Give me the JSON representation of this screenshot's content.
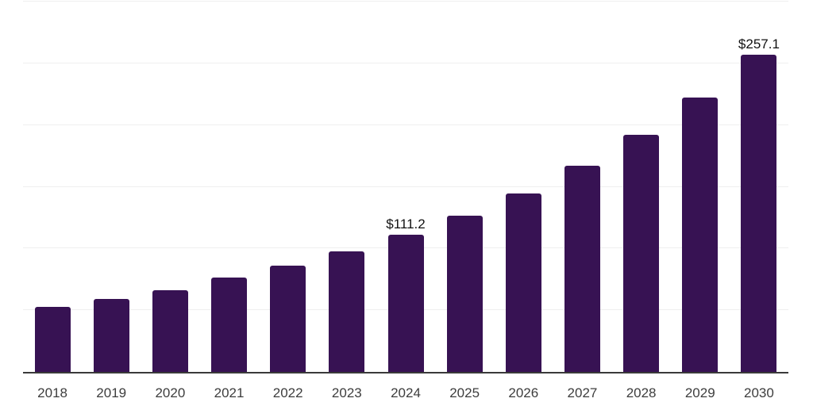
{
  "chart_data": {
    "type": "bar",
    "title": "",
    "xlabel": "",
    "ylabel": "",
    "categories": [
      "2018",
      "2019",
      "2020",
      "2021",
      "2022",
      "2023",
      "2024",
      "2025",
      "2026",
      "2027",
      "2028",
      "2029",
      "2030"
    ],
    "values": [
      52.4,
      59.2,
      65.9,
      76.6,
      86.2,
      97.7,
      111.2,
      126.9,
      144.8,
      166.8,
      191.9,
      222.2,
      257.1
    ],
    "bar_labels": [
      "",
      "",
      "",
      "",
      "",
      "",
      "$111.2",
      "",
      "",
      "",
      "",
      "",
      "$257.1"
    ],
    "ylim": [
      0,
      300
    ],
    "gridline_values": [
      50,
      100,
      150,
      200,
      250,
      300
    ],
    "grid": true,
    "legend": "none",
    "colors": {
      "bar": "#371253",
      "grid": "#efefef",
      "axis": "#3a3a3a",
      "tick_text": "#3d3d3d",
      "data_label_text": "#111111",
      "background": "#ffffff"
    }
  }
}
